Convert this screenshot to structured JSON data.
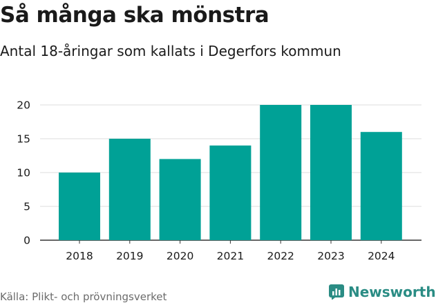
{
  "header": {
    "title": "Så många ska mönstra",
    "subtitle": "Antal 18-åringar som kallats i Degerfors kommun"
  },
  "chart_data": {
    "type": "bar",
    "categories": [
      "2018",
      "2019",
      "2020",
      "2021",
      "2022",
      "2023",
      "2024"
    ],
    "values": [
      10,
      15,
      12,
      14,
      20,
      20,
      16
    ],
    "yticks": [
      0,
      5,
      10,
      15,
      20
    ],
    "ylim": [
      0,
      21
    ],
    "grid": true,
    "bar_color": "#00a196"
  },
  "footer": {
    "source": "Källa: Plikt- och prövningsverket",
    "brand": "Newsworthy",
    "brand_color": "#2a8c84",
    "brand_icon": "bar-chart-logo-icon"
  }
}
